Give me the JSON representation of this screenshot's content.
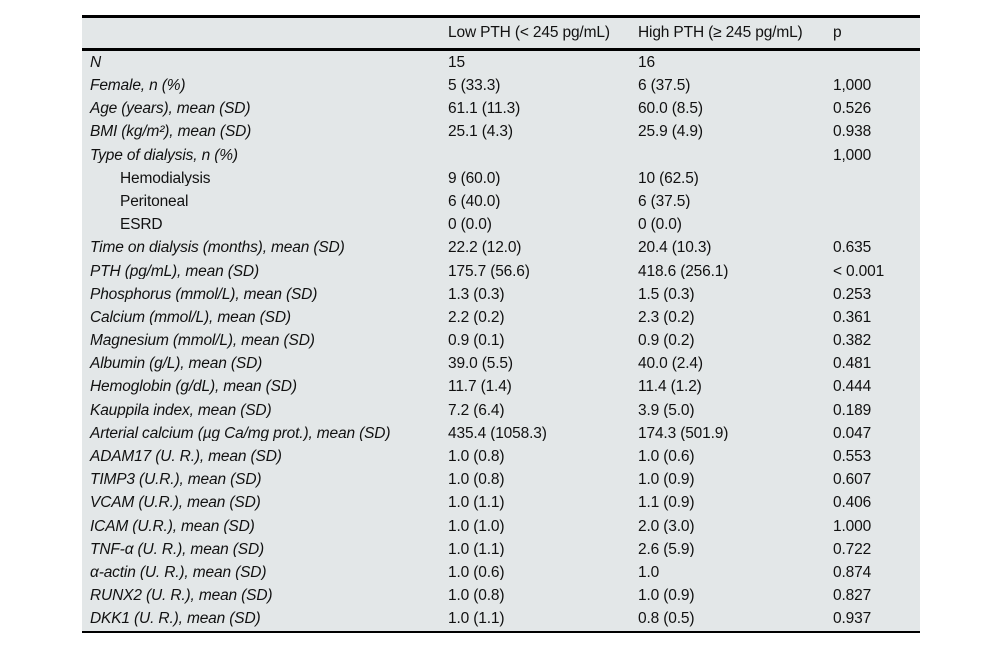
{
  "page": {
    "background": "#ffffff"
  },
  "table": {
    "background": "#e3e7e8",
    "border_color": "#000000",
    "columns": [
      "",
      "Low PTH (< 245 pg/mL)",
      "High PTH (≥ 245 pg/mL)",
      "p"
    ],
    "rows": [
      {
        "label": "N",
        "low": "15",
        "high": "16",
        "p": "",
        "indent": false
      },
      {
        "label": "Female, n (%)",
        "low": "5 (33.3)",
        "high": "6 (37.5)",
        "p": "1,000",
        "indent": false
      },
      {
        "label": "Age (years), mean (SD)",
        "low": "61.1 (11.3)",
        "high": "60.0 (8.5)",
        "p": "0.526",
        "indent": false
      },
      {
        "label": "BMI (kg/m²), mean (SD)",
        "low": "25.1 (4.3)",
        "high": "25.9 (4.9)",
        "p": "0.938",
        "indent": false
      },
      {
        "label": "Type of dialysis, n (%)",
        "low": "",
        "high": "",
        "p": "1,000",
        "indent": false
      },
      {
        "label": "Hemodialysis",
        "low": "9 (60.0)",
        "high": "10 (62.5)",
        "p": "",
        "indent": true
      },
      {
        "label": "Peritoneal",
        "low": "6 (40.0)",
        "high": "6 (37.5)",
        "p": "",
        "indent": true
      },
      {
        "label": "ESRD",
        "low": "0 (0.0)",
        "high": "0 (0.0)",
        "p": "",
        "indent": true
      },
      {
        "label": "Time on dialysis (months), mean (SD)",
        "low": "22.2 (12.0)",
        "high": "20.4 (10.3)",
        "p": "0.635",
        "indent": false
      },
      {
        "label": "PTH (pg/mL), mean (SD)",
        "low": "175.7 (56.6)",
        "high": "418.6 (256.1)",
        "p": "< 0.001",
        "indent": false
      },
      {
        "label": "Phosphorus (mmol/L), mean (SD)",
        "low": "1.3 (0.3)",
        "high": "1.5 (0.3)",
        "p": "0.253",
        "indent": false
      },
      {
        "label": "Calcium (mmol/L), mean (SD)",
        "low": "2.2 (0.2)",
        "high": "2.3 (0.2)",
        "p": "0.361",
        "indent": false
      },
      {
        "label": "Magnesium (mmol/L), mean (SD)",
        "low": "0.9 (0.1)",
        "high": "0.9 (0.2)",
        "p": "0.382",
        "indent": false
      },
      {
        "label": "Albumin (g/L), mean (SD)",
        "low": "39.0 (5.5)",
        "high": "40.0 (2.4)",
        "p": "0.481",
        "indent": false
      },
      {
        "label": "Hemoglobin (g/dL), mean (SD)",
        "low": "11.7 (1.4)",
        "high": "11.4 (1.2)",
        "p": "0.444",
        "indent": false
      },
      {
        "label": "Kauppila index, mean (SD)",
        "low": "7.2 (6.4)",
        "high": "3.9 (5.0)",
        "p": "0.189",
        "indent": false
      },
      {
        "label": "Arterial calcium (µg Ca/mg prot.), mean (SD)",
        "low": "435.4 (1058.3)",
        "high": "174.3 (501.9)",
        "p": "0.047",
        "indent": false
      },
      {
        "label": "ADAM17 (U. R.), mean (SD)",
        "low": "1.0 (0.8)",
        "high": "1.0 (0.6)",
        "p": "0.553",
        "indent": false
      },
      {
        "label": "TIMP3 (U.R.), mean (SD)",
        "low": "1.0 (0.8)",
        "high": "1.0 (0.9)",
        "p": "0.607",
        "indent": false
      },
      {
        "label": "VCAM (U.R.), mean (SD)",
        "low": "1.0 (1.1)",
        "high": "1.1 (0.9)",
        "p": "0.406",
        "indent": false
      },
      {
        "label": "ICAM (U.R.), mean (SD)",
        "low": "1.0 (1.0)",
        "high": "2.0 (3.0)",
        "p": "1.000",
        "indent": false
      },
      {
        "label": "TNF-α (U. R.), mean (SD)",
        "low": "1.0 (1.1)",
        "high": "2.6 (5.9)",
        "p": "0.722",
        "indent": false
      },
      {
        "label": "α-actin (U. R.), mean (SD)",
        "low": "1.0 (0.6)",
        "high": "1.0",
        "p": "0.874",
        "indent": false
      },
      {
        "label": "RUNX2 (U. R.), mean (SD)",
        "low": "1.0 (0.8)",
        "high": "1.0 (0.9)",
        "p": "0.827",
        "indent": false
      },
      {
        "label": "DKK1 (U. R.), mean (SD)",
        "low": "1.0 (1.1)",
        "high": "0.8 (0.5)",
        "p": "0.937",
        "indent": false
      }
    ]
  }
}
